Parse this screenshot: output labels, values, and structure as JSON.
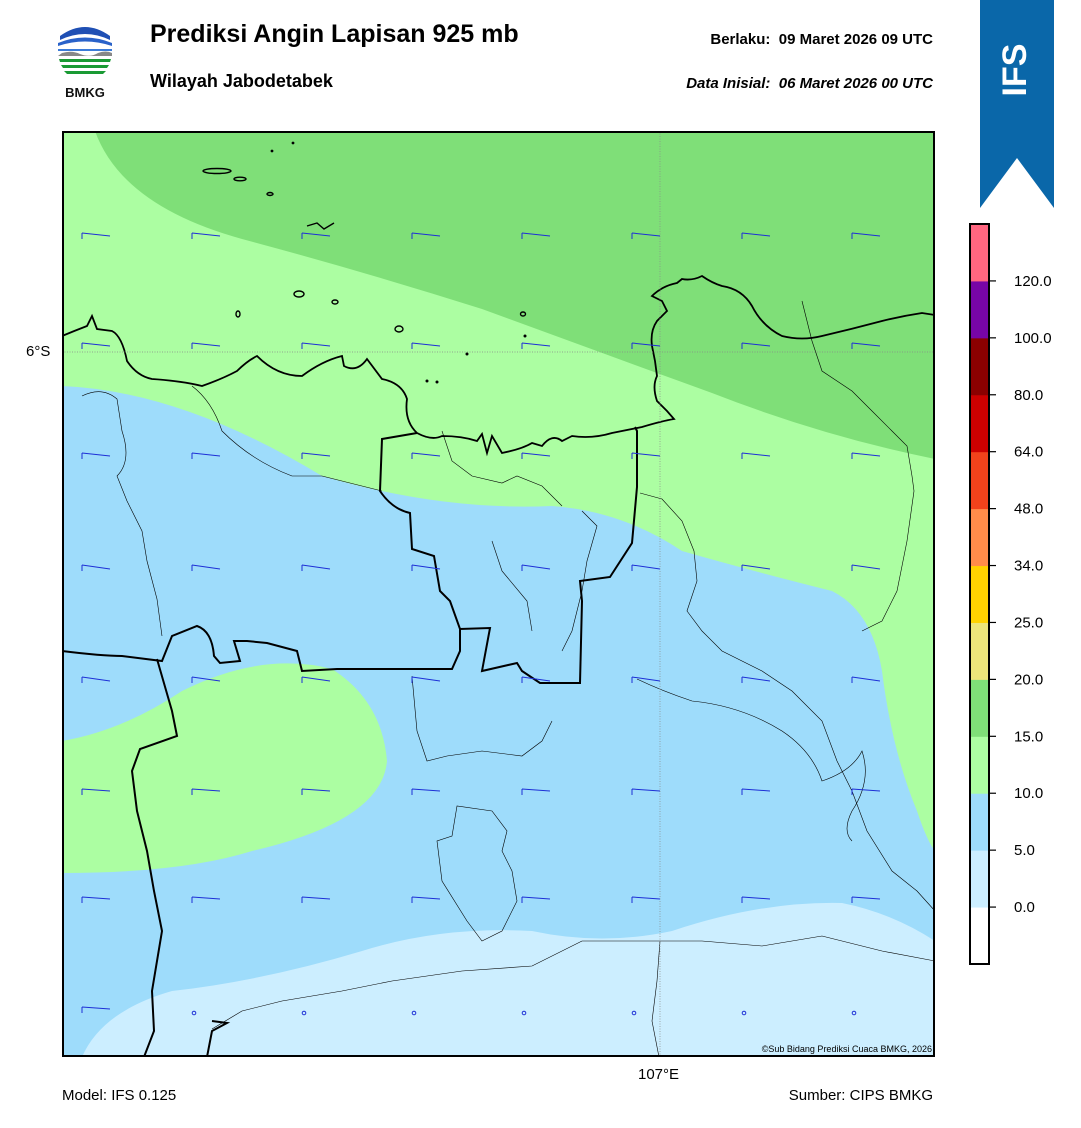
{
  "header": {
    "logo_text": "BMKG",
    "title": "Prediksi Angin Lapisan 925 mb",
    "subtitle": "Wilayah Jabodetabek",
    "valid_label": "Berlaku:",
    "valid_value": "09 Maret 2026 09 UTC",
    "initial_label": "Data Inisial:",
    "initial_value": "06 Maret 2026 00 UTC"
  },
  "model_banner": {
    "text": "IFS",
    "color": "#0a67a9"
  },
  "map": {
    "lat_label": "6°S",
    "lon_label": "107°E",
    "copyright": "©Sub Bidang Prediksi Cuaca BMKG, 2026"
  },
  "colorbar": {
    "ticks": [
      "120.0",
      "100.0",
      "80.0",
      "64.0",
      "48.0",
      "34.0",
      "25.0",
      "20.0",
      "15.0",
      "10.0",
      "5.0",
      "0.0"
    ],
    "colors": [
      "#ffffff",
      "#cceeff",
      "#9edcfb",
      "#acfea2",
      "#7fdf78",
      "#ede57a",
      "#ffd200",
      "#ff8c4a",
      "#f2421b",
      "#cd0000",
      "#8b0000",
      "#7705a6",
      "#ff6680"
    ],
    "colors_order": "bottom-to-top"
  },
  "footer": {
    "model": "Model: IFS 0.125",
    "source": "Sumber: CIPS BMKG"
  }
}
